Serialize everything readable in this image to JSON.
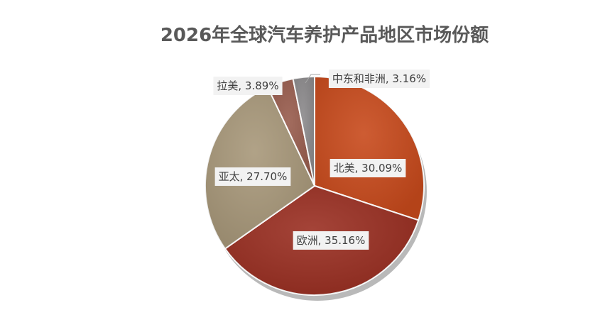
{
  "chart_data": {
    "type": "pie",
    "title": "2026年全球汽车养护产品地区市场份额",
    "categories": [
      "北美",
      "欧洲",
      "亚太",
      "拉美",
      "中东和非洲"
    ],
    "values": [
      30.09,
      35.16,
      27.7,
      3.89,
      3.16
    ],
    "unit": "%",
    "labels": [
      "北美, 30.09%",
      "欧洲, 35.16%",
      "亚太, 27.70%",
      "拉美, 3.89%",
      "中东和非洲, 3.16%"
    ],
    "colors": [
      "#c84a1c",
      "#9a2f22",
      "#a8987a",
      "#985c4d",
      "#8c8a8c"
    ],
    "start_angle_deg": 0,
    "direction": "clockwise",
    "legend": "none"
  }
}
